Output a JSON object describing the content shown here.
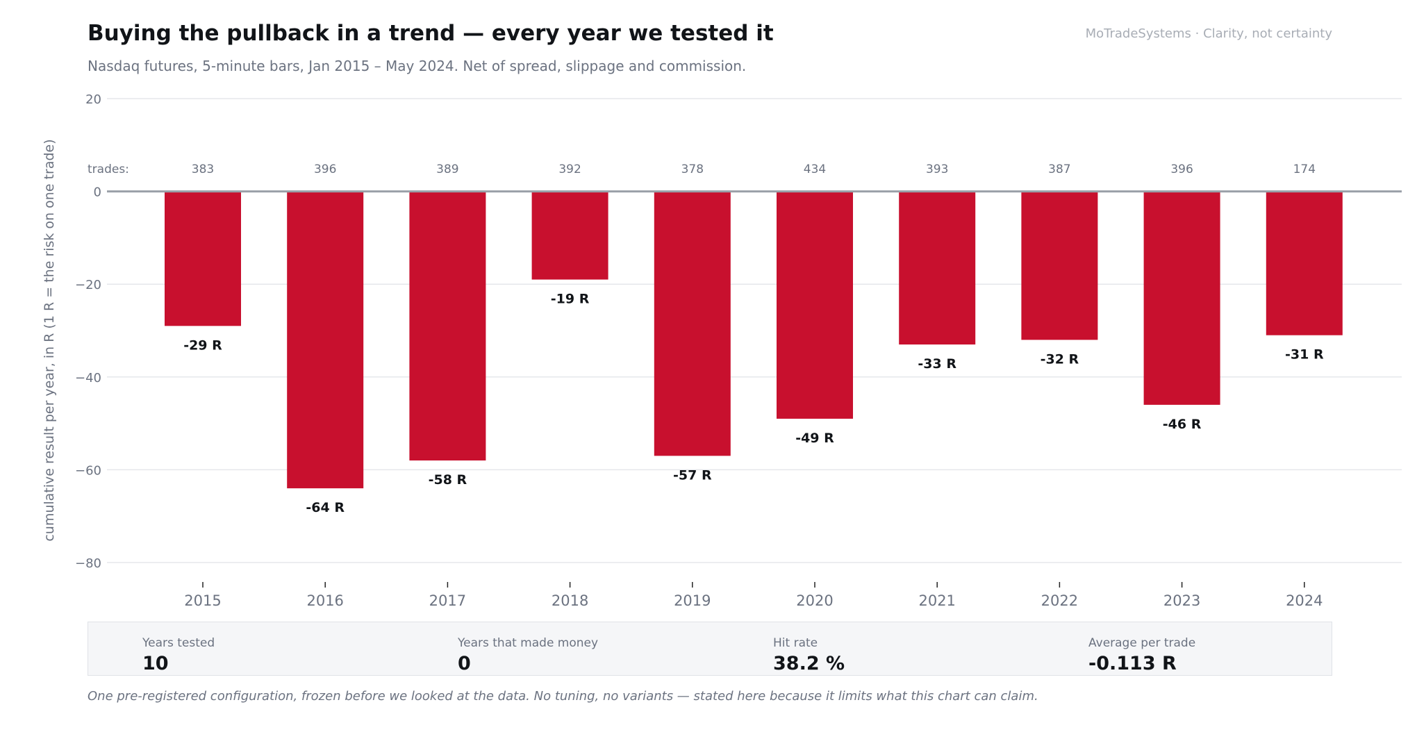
{
  "header": {
    "title": "Buying the pullback in a trend — every year we tested it",
    "subtitle": "Nasdaq futures, 5-minute bars, Jan 2015 – May 2024. Net of spread, slippage and commission.",
    "brand": "MoTradeSystems · Clarity, not certainty"
  },
  "chart_data": {
    "type": "bar",
    "categories": [
      "2015",
      "2016",
      "2017",
      "2018",
      "2019",
      "2020",
      "2021",
      "2022",
      "2023",
      "2024"
    ],
    "values": [
      -29,
      -64,
      -58,
      -19,
      -57,
      -49,
      -33,
      -32,
      -46,
      -31
    ],
    "value_labels": [
      "-29 R",
      "-64 R",
      "-58 R",
      "-19 R",
      "-57 R",
      "-49 R",
      "-33 R",
      "-32 R",
      "-46 R",
      "-31 R"
    ],
    "trades": [
      383,
      396,
      389,
      392,
      378,
      434,
      393,
      387,
      396,
      174
    ],
    "trades_label": "trades:",
    "ylabel": "cumulative result per year, in R (1 R = the risk on one trade)",
    "ylim": [
      -80,
      20
    ],
    "yticks": [
      20,
      0,
      -20,
      -40,
      -60,
      -80
    ],
    "ytick_labels": [
      "20",
      "0",
      "−20",
      "−40",
      "−60",
      "−80"
    ],
    "grid": true,
    "colors": {
      "bar": "#c8102e",
      "zero_line": "#9aa0a8",
      "grid": "#e5e7eb",
      "text_dark": "#111418",
      "text_muted": "#6b7280"
    }
  },
  "stats": [
    {
      "label": "Years tested",
      "value": "10"
    },
    {
      "label": "Years that made money",
      "value": "0"
    },
    {
      "label": "Hit rate",
      "value": "38.2 %"
    },
    {
      "label": "Average per trade",
      "value": "-0.113 R"
    }
  ],
  "footnote": "One pre-registered configuration, frozen before we looked at the data. No tuning, no variants — stated here because it limits what this chart can claim."
}
